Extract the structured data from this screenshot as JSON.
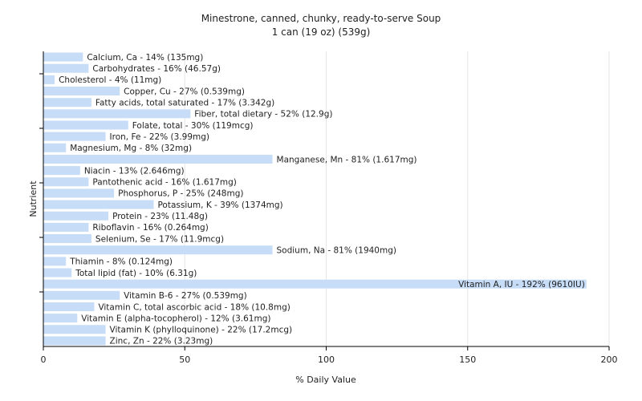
{
  "chart_data": {
    "type": "bar",
    "orientation": "horizontal",
    "title": "Minestrone, canned, chunky, ready-to-serve Soup",
    "subtitle": "1 can (19 oz) (539g)",
    "xlabel": "% Daily Value",
    "ylabel": "Nutrient",
    "xlim": [
      0,
      200
    ],
    "xticks": [
      0,
      50,
      100,
      150,
      200
    ],
    "grid": true,
    "bar_color": "#c6dcf7",
    "categories": [
      "Calcium, Ca",
      "Carbohydrates",
      "Cholesterol",
      "Copper, Cu",
      "Fatty acids, total saturated",
      "Fiber, total dietary",
      "Folate, total",
      "Iron, Fe",
      "Magnesium, Mg",
      "Manganese, Mn",
      "Niacin",
      "Pantothenic acid",
      "Phosphorus, P",
      "Potassium, K",
      "Protein",
      "Riboflavin",
      "Selenium, Se",
      "Sodium, Na",
      "Thiamin",
      "Total lipid (fat)",
      "Vitamin A, IU",
      "Vitamin B-6",
      "Vitamin C, total ascorbic acid",
      "Vitamin E (alpha-tocopherol)",
      "Vitamin K (phylloquinone)",
      "Zinc, Zn"
    ],
    "values": [
      14,
      16,
      4,
      27,
      17,
      52,
      30,
      22,
      8,
      81,
      13,
      16,
      25,
      39,
      23,
      16,
      17,
      81,
      8,
      10,
      192,
      27,
      18,
      12,
      22,
      22
    ],
    "labels": [
      "Calcium, Ca - 14% (135mg)",
      "Carbohydrates - 16% (46.57g)",
      "Cholesterol - 4% (11mg)",
      "Copper, Cu - 27% (0.539mg)",
      "Fatty acids, total saturated - 17% (3.342g)",
      "Fiber, total dietary - 52% (12.9g)",
      "Folate, total - 30% (119mcg)",
      "Iron, Fe - 22% (3.99mg)",
      "Magnesium, Mg - 8% (32mg)",
      "Manganese, Mn - 81% (1.617mg)",
      "Niacin - 13% (2.646mg)",
      "Pantothenic acid - 16% (1.617mg)",
      "Phosphorus, P - 25% (248mg)",
      "Potassium, K - 39% (1374mg)",
      "Protein - 23% (11.48g)",
      "Riboflavin - 16% (0.264mg)",
      "Selenium, Se - 17% (11.9mcg)",
      "Sodium, Na - 81% (1940mg)",
      "Thiamin - 8% (0.124mg)",
      "Total lipid (fat) - 10% (6.31g)",
      "Vitamin A, IU - 192% (9610IU)",
      "Vitamin B-6 - 27% (0.539mg)",
      "Vitamin C, total ascorbic acid - 18% (10.8mg)",
      "Vitamin E (alpha-tocopherol) - 12% (3.61mg)",
      "Vitamin K (phylloquinone) - 22% (17.2mcg)",
      "Zinc, Zn - 22% (3.23mg)"
    ]
  }
}
